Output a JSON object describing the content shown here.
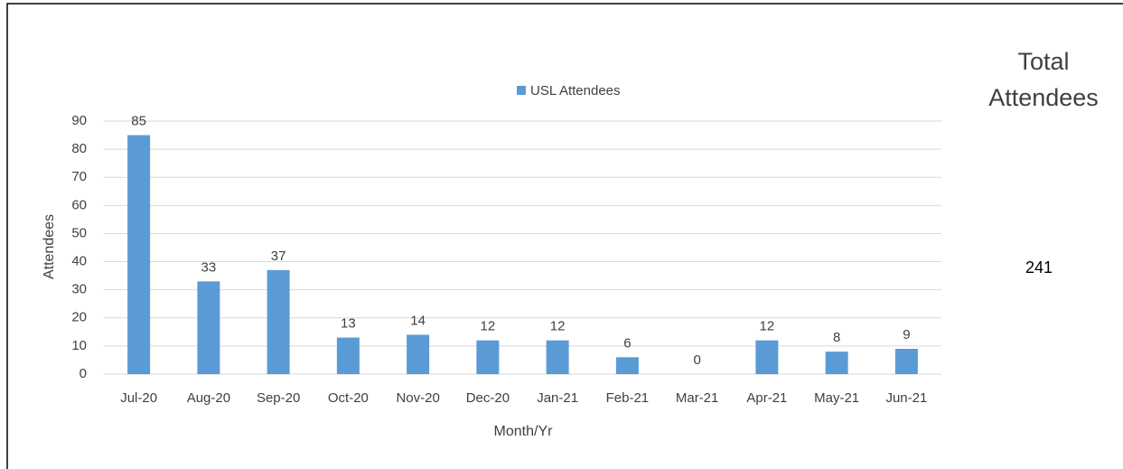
{
  "chart_data": {
    "type": "bar",
    "categories": [
      "Jul-20",
      "Aug-20",
      "Sep-20",
      "Oct-20",
      "Nov-20",
      "Dec-20",
      "Jan-21",
      "Feb-21",
      "Mar-21",
      "Apr-21",
      "May-21",
      "Jun-21"
    ],
    "series": [
      {
        "name": "USL Attendees",
        "color": "#5b9bd5",
        "values": [
          85,
          33,
          37,
          13,
          14,
          12,
          12,
          6,
          0,
          12,
          8,
          9
        ]
      }
    ],
    "xlabel": "Month/Yr",
    "ylabel": "Attendees",
    "ylim": [
      0,
      90
    ],
    "yticks": [
      0,
      10,
      20,
      30,
      40,
      50,
      60,
      70,
      80,
      90
    ],
    "grid": true,
    "legend": "top"
  },
  "summary": {
    "label": "Total Attendees",
    "value": 241
  }
}
